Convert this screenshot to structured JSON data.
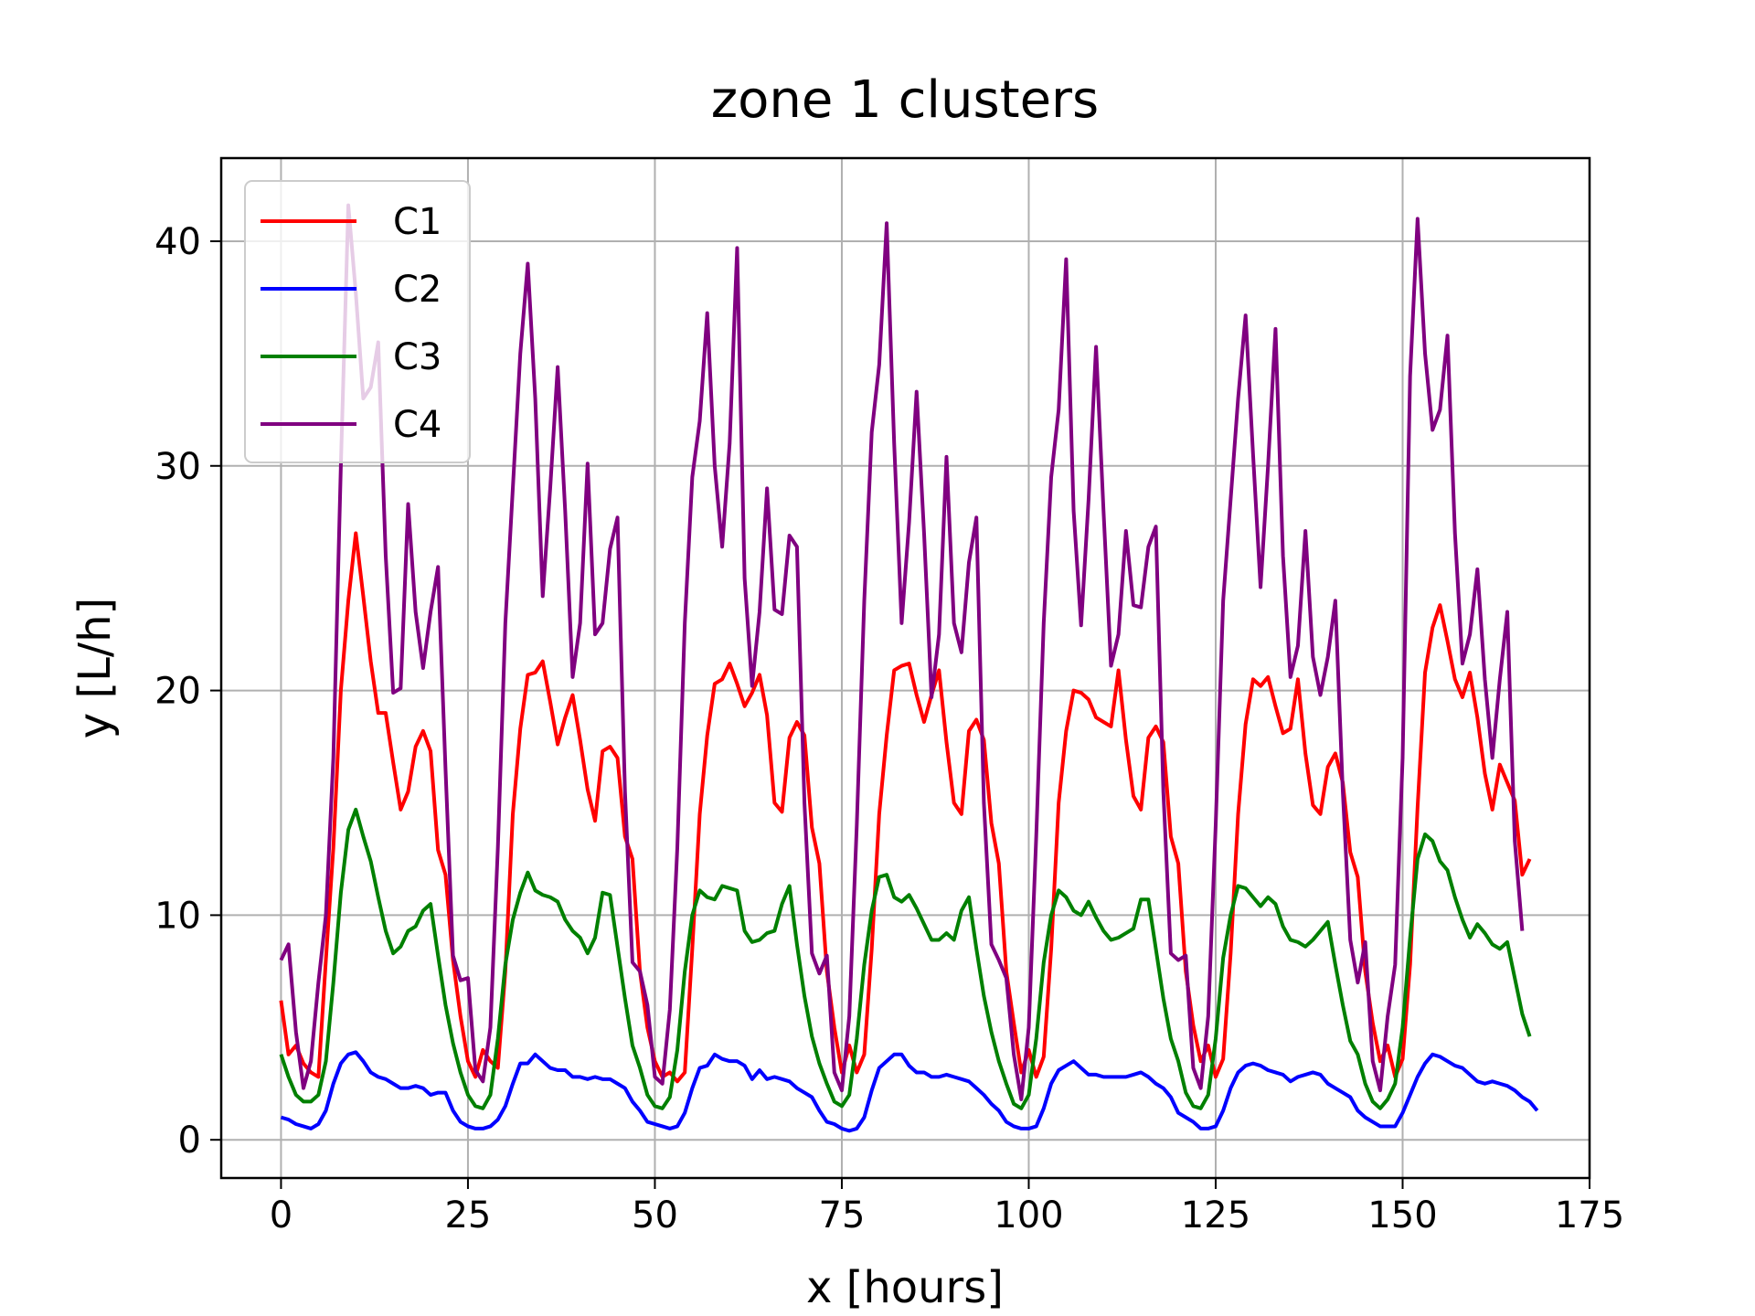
{
  "chart_data": {
    "type": "line",
    "title": "zone 1 clusters",
    "xlabel": "x [hours]",
    "ylabel": "y [L/h]",
    "xlim": [
      -8,
      175
    ],
    "ylim": [
      -1.7,
      43.7
    ],
    "xticks": [
      0,
      25,
      50,
      75,
      100,
      125,
      150,
      175
    ],
    "yticks": [
      0,
      10,
      20,
      30,
      40
    ],
    "grid": true,
    "legend_position": "top-left",
    "x_start": 0,
    "x_step": 1,
    "series": [
      {
        "name": "C1",
        "color": "#ff0000",
        "values": [
          6.2,
          3.8,
          4.2,
          3.4,
          3.0,
          2.8,
          8.0,
          13.0,
          20.0,
          24.0,
          27.0,
          24.2,
          21.3,
          19.0,
          19.0,
          16.8,
          14.7,
          15.5,
          17.5,
          18.2,
          17.3,
          12.9,
          11.8,
          8.0,
          5.5,
          3.5,
          2.8,
          4.0,
          3.5,
          3.2,
          7.5,
          14.5,
          18.3,
          20.7,
          20.8,
          21.3,
          19.5,
          17.6,
          18.8,
          19.8,
          17.8,
          15.6,
          14.2,
          17.3,
          17.5,
          17.0,
          13.5,
          12.5,
          7.5,
          5.0,
          3.5,
          2.8,
          3.0,
          2.6,
          3.0,
          8.5,
          14.5,
          18.0,
          20.3,
          20.5,
          21.2,
          20.3,
          19.3,
          19.9,
          20.7,
          18.9,
          15.0,
          14.6,
          17.9,
          18.6,
          18.0,
          13.9,
          12.3,
          7.5,
          5.0,
          3.0,
          4.2,
          3.0,
          3.8,
          8.5,
          14.5,
          18.0,
          20.9,
          21.1,
          21.2,
          19.8,
          18.6,
          19.8,
          20.9,
          17.7,
          15.0,
          14.5,
          18.2,
          18.7,
          17.8,
          14.1,
          12.3,
          7.5,
          5.2,
          3.0,
          4.0,
          2.8,
          3.7,
          8.5,
          15.0,
          18.2,
          20.0,
          19.9,
          19.6,
          18.8,
          18.6,
          18.4,
          20.9,
          17.8,
          15.3,
          14.7,
          17.9,
          18.4,
          17.7,
          13.5,
          12.3,
          7.5,
          5.1,
          3.5,
          4.2,
          2.8,
          3.6,
          8.3,
          14.5,
          18.5,
          20.5,
          20.2,
          20.6,
          19.3,
          18.1,
          18.3,
          20.5,
          17.2,
          14.9,
          14.5,
          16.6,
          17.2,
          15.9,
          12.8,
          11.7,
          7.5,
          5.2,
          3.5,
          4.2,
          2.8,
          3.6,
          7.8,
          14.8,
          20.8,
          22.8,
          23.8,
          22.2,
          20.5,
          19.7,
          20.8,
          18.8,
          16.3,
          14.7,
          16.7,
          15.9,
          15.1,
          11.8,
          12.5
        ]
      },
      {
        "name": "C2",
        "color": "#0000ff",
        "values": [
          1.0,
          0.9,
          0.7,
          0.6,
          0.5,
          0.7,
          1.3,
          2.5,
          3.4,
          3.8,
          3.9,
          3.5,
          3.0,
          2.8,
          2.7,
          2.5,
          2.3,
          2.3,
          2.4,
          2.3,
          2.0,
          2.1,
          2.1,
          1.3,
          0.8,
          0.6,
          0.5,
          0.5,
          0.6,
          0.9,
          1.5,
          2.5,
          3.4,
          3.4,
          3.8,
          3.5,
          3.2,
          3.1,
          3.1,
          2.8,
          2.8,
          2.7,
          2.8,
          2.7,
          2.7,
          2.5,
          2.3,
          1.7,
          1.3,
          0.8,
          0.7,
          0.6,
          0.5,
          0.6,
          1.2,
          2.3,
          3.2,
          3.3,
          3.8,
          3.6,
          3.5,
          3.5,
          3.3,
          2.7,
          3.1,
          2.7,
          2.8,
          2.7,
          2.6,
          2.3,
          2.1,
          1.9,
          1.3,
          0.8,
          0.7,
          0.5,
          0.4,
          0.5,
          1.0,
          2.2,
          3.2,
          3.5,
          3.8,
          3.8,
          3.3,
          3.0,
          3.0,
          2.8,
          2.8,
          2.9,
          2.8,
          2.7,
          2.6,
          2.3,
          2.0,
          1.6,
          1.3,
          0.8,
          0.6,
          0.5,
          0.5,
          0.6,
          1.4,
          2.5,
          3.1,
          3.3,
          3.5,
          3.2,
          2.9,
          2.9,
          2.8,
          2.8,
          2.8,
          2.8,
          2.9,
          3.0,
          2.8,
          2.5,
          2.3,
          1.9,
          1.2,
          1.0,
          0.8,
          0.5,
          0.5,
          0.6,
          1.3,
          2.3,
          3.0,
          3.3,
          3.4,
          3.3,
          3.1,
          3.0,
          2.9,
          2.6,
          2.8,
          2.9,
          3.0,
          2.9,
          2.5,
          2.3,
          2.1,
          1.9,
          1.3,
          1.0,
          0.8,
          0.6,
          0.6,
          0.6,
          1.2,
          2.0,
          2.8,
          3.4,
          3.8,
          3.7,
          3.5,
          3.3,
          3.2,
          2.9,
          2.6,
          2.5,
          2.6,
          2.5,
          2.4,
          2.2,
          1.9,
          1.7,
          1.3
        ]
      },
      {
        "name": "C3",
        "color": "#008000",
        "values": [
          3.8,
          2.8,
          2.0,
          1.7,
          1.7,
          2.0,
          3.5,
          7.0,
          11.0,
          13.8,
          14.7,
          13.5,
          12.4,
          10.8,
          9.3,
          8.3,
          8.6,
          9.3,
          9.5,
          10.2,
          10.5,
          8.2,
          6.0,
          4.3,
          3.0,
          2.0,
          1.5,
          1.4,
          2.0,
          4.5,
          7.8,
          9.8,
          11.0,
          11.9,
          11.1,
          10.9,
          10.8,
          10.6,
          9.8,
          9.3,
          9.0,
          8.3,
          9.0,
          11.0,
          10.9,
          8.6,
          6.3,
          4.2,
          3.2,
          2.0,
          1.5,
          1.4,
          1.9,
          4.0,
          7.5,
          10.0,
          11.1,
          10.8,
          10.7,
          11.3,
          11.2,
          11.1,
          9.3,
          8.8,
          8.9,
          9.2,
          9.3,
          10.5,
          11.3,
          8.7,
          6.4,
          4.6,
          3.4,
          2.5,
          1.7,
          1.5,
          2.0,
          4.5,
          7.8,
          10.2,
          11.7,
          11.8,
          10.8,
          10.6,
          10.9,
          10.3,
          9.6,
          8.9,
          8.9,
          9.2,
          8.9,
          10.2,
          10.8,
          8.5,
          6.4,
          4.8,
          3.5,
          2.5,
          1.6,
          1.4,
          2.0,
          4.5,
          7.9,
          10.0,
          11.1,
          10.8,
          10.2,
          10.0,
          10.6,
          9.9,
          9.3,
          8.9,
          9.0,
          9.2,
          9.4,
          10.7,
          10.7,
          8.5,
          6.3,
          4.5,
          3.5,
          2.1,
          1.5,
          1.4,
          2.0,
          4.5,
          8.1,
          10.0,
          11.3,
          11.2,
          10.8,
          10.4,
          10.8,
          10.5,
          9.5,
          8.9,
          8.8,
          8.6,
          8.9,
          9.3,
          9.7,
          7.8,
          6.0,
          4.4,
          3.8,
          2.5,
          1.7,
          1.4,
          1.8,
          2.5,
          5.0,
          9.0,
          12.5,
          13.6,
          13.3,
          12.4,
          12.0,
          10.8,
          9.8,
          9.0,
          9.6,
          9.2,
          8.7,
          8.5,
          8.8,
          7.2,
          5.6,
          4.6
        ]
      },
      {
        "name": "C4",
        "color": "#800080",
        "values": [
          8.0,
          8.7,
          4.8,
          2.3,
          3.5,
          7.0,
          10.0,
          17.0,
          30.0,
          41.6,
          37.7,
          33.0,
          33.5,
          35.5,
          26.0,
          19.9,
          20.1,
          28.3,
          23.5,
          21.0,
          23.5,
          25.5,
          16.5,
          8.2,
          7.1,
          7.2,
          3.1,
          2.6,
          5.0,
          13.0,
          23.0,
          29.0,
          35.0,
          39.0,
          33.0,
          24.2,
          29.0,
          34.4,
          28.0,
          20.6,
          23.0,
          30.1,
          22.5,
          23.0,
          26.3,
          27.7,
          15.5,
          7.9,
          7.5,
          6.0,
          2.8,
          2.5,
          5.8,
          13.0,
          23.0,
          29.5,
          32.0,
          36.8,
          30.0,
          26.4,
          31.0,
          39.7,
          25.0,
          20.2,
          23.5,
          29.0,
          23.6,
          23.4,
          26.9,
          26.4,
          15.0,
          8.3,
          7.4,
          8.2,
          3.0,
          2.2,
          5.5,
          14.0,
          24.0,
          31.5,
          34.5,
          40.8,
          31.0,
          23.0,
          27.5,
          33.3,
          27.0,
          19.7,
          22.5,
          30.4,
          23.0,
          21.7,
          25.7,
          27.7,
          15.0,
          8.7,
          8.0,
          7.2,
          3.8,
          1.8,
          5.0,
          13.5,
          23.0,
          29.5,
          32.5,
          39.2,
          28.0,
          22.9,
          28.5,
          35.3,
          28.0,
          21.1,
          22.5,
          27.1,
          23.8,
          23.7,
          26.4,
          27.3,
          15.5,
          8.3,
          8.0,
          8.2,
          3.2,
          2.3,
          5.5,
          14.0,
          24.0,
          28.5,
          33.0,
          36.7,
          30.5,
          24.6,
          30.0,
          36.1,
          26.0,
          20.6,
          22.0,
          27.1,
          21.5,
          19.8,
          21.5,
          24.0,
          15.5,
          8.9,
          7.0,
          8.8,
          3.5,
          2.2,
          5.5,
          7.8,
          17.0,
          34.0,
          41.0,
          35.0,
          31.6,
          32.5,
          35.8,
          27.0,
          21.2,
          22.5,
          25.4,
          20.5,
          17.0,
          20.5,
          23.5,
          13.3,
          9.3
        ]
      }
    ]
  }
}
